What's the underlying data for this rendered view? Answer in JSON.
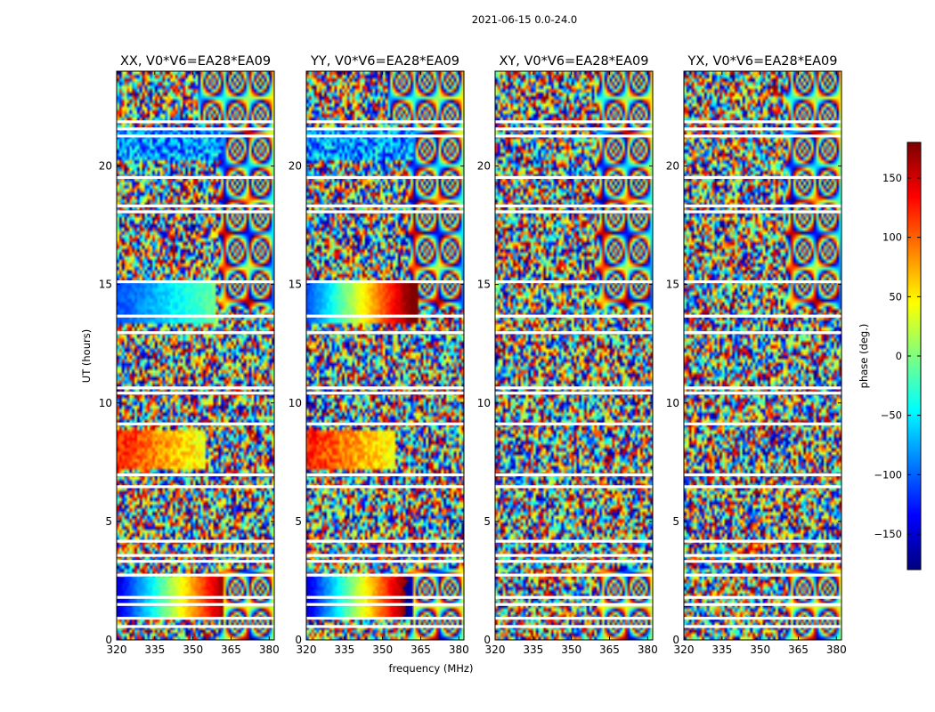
{
  "figure": {
    "suptitle": "2021-06-15 0.0-24.0",
    "xlabel": "frequency (MHz)",
    "ylabel": "UT (hours)"
  },
  "chart_data": {
    "type": "heatmap",
    "colormap": "jet",
    "panels": [
      {
        "title": "XX, V0*V6=EA28*EA09",
        "pattern": "XX"
      },
      {
        "title": "YY, V0*V6=EA28*EA09",
        "pattern": "YY"
      },
      {
        "title": "XY, V0*V6=EA28*EA09",
        "pattern": "XY"
      },
      {
        "title": "YX, V0*V6=EA28*EA09",
        "pattern": "YX"
      }
    ],
    "x_range": [
      320,
      382
    ],
    "x_ticks": [
      320,
      335,
      350,
      365,
      380
    ],
    "y_range": [
      0,
      24
    ],
    "y_ticks": [
      0,
      5,
      10,
      15,
      20
    ],
    "flagged_ut_gaps": [
      0.55,
      0.9,
      1.48,
      1.78,
      2.72,
      3.3,
      3.55,
      4.15,
      6.45,
      6.95,
      9.1,
      10.4,
      10.62,
      12.95,
      13.65,
      15.1,
      18.05,
      18.3,
      19.5,
      21.25,
      21.55,
      21.85
    ],
    "colorbar": {
      "label": "phase (deg.)",
      "range": [
        -180,
        180
      ],
      "ticks": [
        -150,
        -100,
        -50,
        0,
        50,
        100,
        150
      ]
    }
  }
}
